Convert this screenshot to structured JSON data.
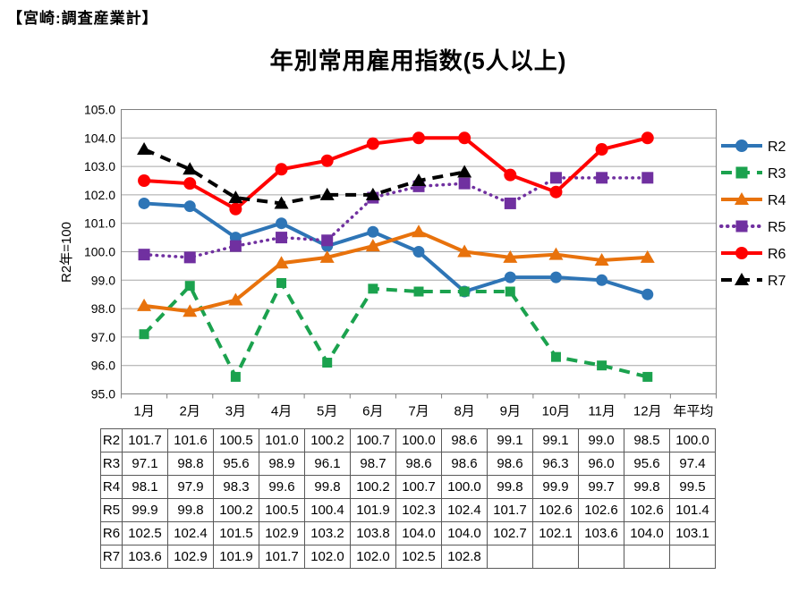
{
  "page": {
    "corner_header": "【宮崎:調査産業計】"
  },
  "chart_data": {
    "type": "line",
    "title": "年別常用雇用指数(5人以上)",
    "ylabel": "R2年=100",
    "ylim": [
      95.0,
      105.0
    ],
    "ytick_step": 1.0,
    "grid": true,
    "legend_position": "right",
    "categories": [
      "1月",
      "2月",
      "3月",
      "4月",
      "5月",
      "6月",
      "7月",
      "8月",
      "9月",
      "10月",
      "11月",
      "12月"
    ],
    "average_column_label": "年平均",
    "series": [
      {
        "name": "R2",
        "color": "#2E75B6",
        "dash": "solid",
        "marker": "circle",
        "values": [
          101.7,
          101.6,
          100.5,
          101.0,
          100.2,
          100.7,
          100.0,
          98.6,
          99.1,
          99.1,
          99.0,
          98.5
        ],
        "average": 100.0
      },
      {
        "name": "R3",
        "color": "#1BA24E",
        "dash": "dashed",
        "marker": "square",
        "values": [
          97.1,
          98.8,
          95.6,
          98.9,
          96.1,
          98.7,
          98.6,
          98.6,
          98.6,
          96.3,
          96.0,
          95.6
        ],
        "average": 97.4
      },
      {
        "name": "R4",
        "color": "#E8720C",
        "dash": "solid",
        "marker": "triangle",
        "values": [
          98.1,
          97.9,
          98.3,
          99.6,
          99.8,
          100.2,
          100.7,
          100.0,
          99.8,
          99.9,
          99.7,
          99.8
        ],
        "average": 99.5
      },
      {
        "name": "R5",
        "color": "#7030A0",
        "dash": "dotted",
        "marker": "square",
        "values": [
          99.9,
          99.8,
          100.2,
          100.5,
          100.4,
          101.9,
          102.3,
          102.4,
          101.7,
          102.6,
          102.6,
          102.6
        ],
        "average": 101.4
      },
      {
        "name": "R6",
        "color": "#FF0000",
        "dash": "solid",
        "marker": "circle",
        "values": [
          102.5,
          102.4,
          101.5,
          102.9,
          103.2,
          103.8,
          104.0,
          104.0,
          102.7,
          102.1,
          103.6,
          104.0
        ],
        "average": 103.1
      },
      {
        "name": "R7",
        "color": "#000000",
        "dash": "dashed",
        "marker": "triangle",
        "values": [
          103.6,
          102.9,
          101.9,
          101.7,
          102.0,
          102.0,
          102.5,
          102.8
        ],
        "average": null
      }
    ],
    "colors": {
      "gridline": "#A6A6A6",
      "plot_border": "#808080",
      "table_border": "#595959",
      "text": "#000000"
    }
  }
}
